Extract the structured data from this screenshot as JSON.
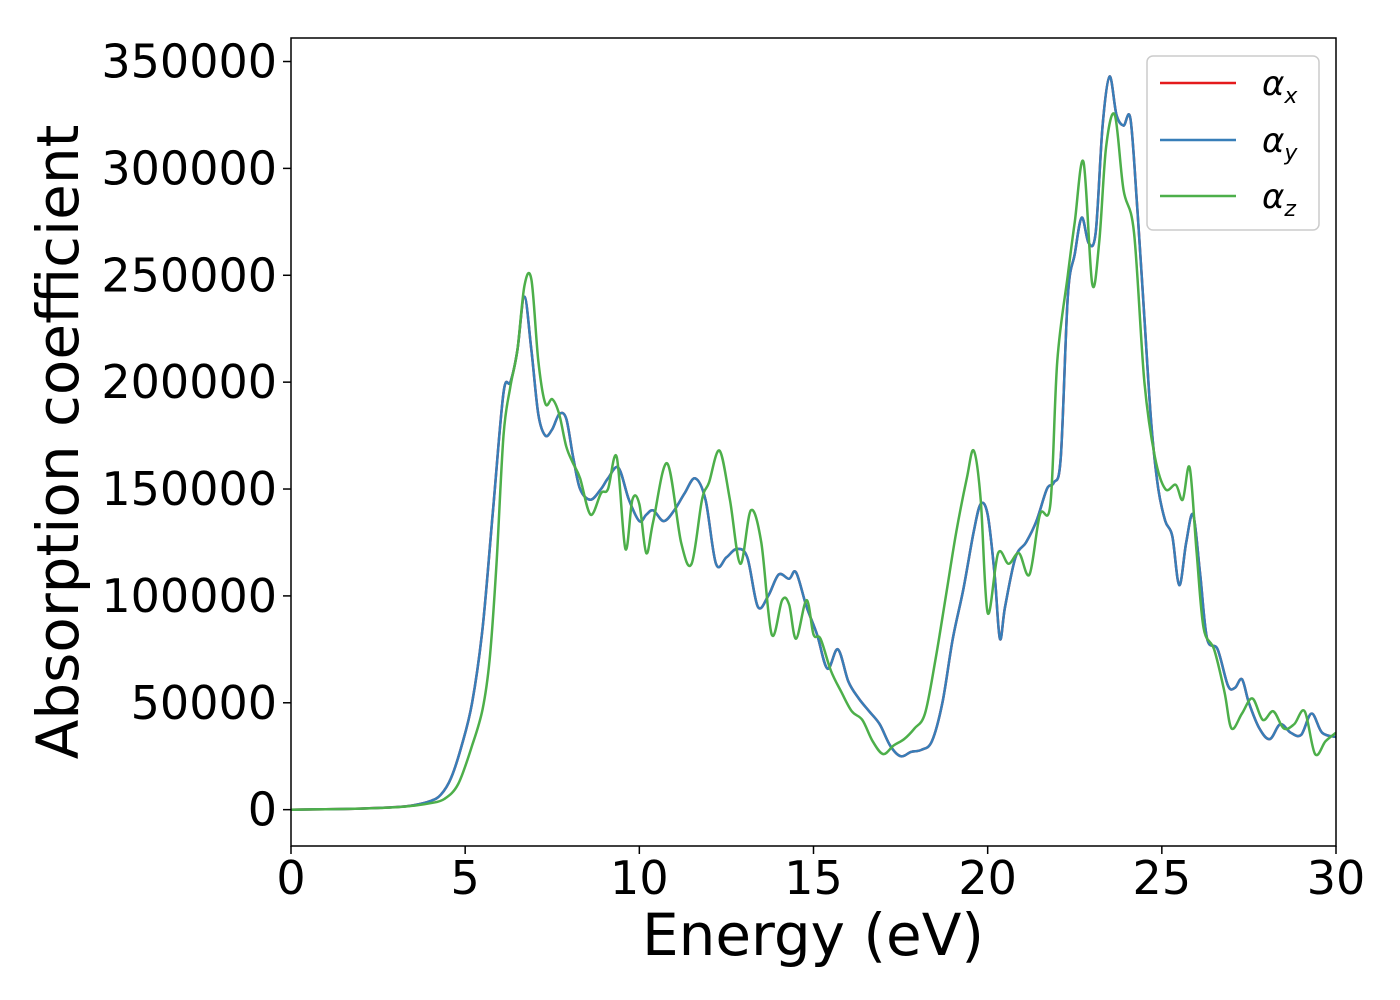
{
  "chart_data": {
    "type": "line",
    "title": "",
    "xlabel": "Energy (eV)",
    "ylabel": "Absorption coefficient",
    "xlim": [
      0,
      30
    ],
    "ylim": [
      -17000,
      361000
    ],
    "xticks": [
      0,
      5,
      10,
      15,
      20,
      25,
      30
    ],
    "yticks": [
      0,
      50000,
      100000,
      150000,
      200000,
      250000,
      300000,
      350000
    ],
    "grid": false,
    "legend_position": "top-right",
    "series": [
      {
        "name": "α_x",
        "legend_symbol": "α",
        "legend_subscript": "x",
        "color": "#e41a1c",
        "x": [
          0,
          1,
          2,
          3,
          3.5,
          4,
          4.3,
          4.6,
          4.9,
          5.2,
          5.5,
          5.8,
          6.1,
          6.3,
          6.5,
          6.7,
          6.9,
          7.1,
          7.3,
          7.5,
          7.7,
          7.9,
          8.1,
          8.3,
          8.6,
          8.9,
          9.1,
          9.4,
          9.7,
          10.0,
          10.2,
          10.4,
          10.7,
          11.0,
          11.3,
          11.6,
          11.9,
          12.2,
          12.5,
          12.8,
          13.1,
          13.4,
          13.7,
          14.0,
          14.3,
          14.5,
          14.8,
          15.1,
          15.4,
          15.7,
          16.0,
          16.3,
          16.6,
          16.9,
          17.2,
          17.5,
          17.8,
          18.1,
          18.4,
          18.7,
          19.0,
          19.3,
          19.6,
          19.8,
          20.0,
          20.2,
          20.35,
          20.5,
          20.8,
          21.1,
          21.4,
          21.7,
          21.9,
          22.1,
          22.3,
          22.5,
          22.7,
          22.9,
          23.1,
          23.3,
          23.5,
          23.7,
          23.9,
          24.1,
          24.3,
          24.5,
          24.7,
          24.9,
          25.1,
          25.3,
          25.5,
          25.7,
          25.9,
          26.1,
          26.3,
          26.6,
          26.9,
          27.1,
          27.3,
          27.5,
          27.8,
          28.1,
          28.4,
          28.7,
          29.0,
          29.3,
          29.6,
          30.0
        ],
        "values": [
          0,
          200,
          500,
          1200,
          2000,
          4000,
          7000,
          15000,
          30000,
          50000,
          85000,
          140000,
          195000,
          200000,
          215000,
          240000,
          215000,
          185000,
          175000,
          178000,
          185000,
          183000,
          165000,
          150000,
          145000,
          150000,
          155000,
          160000,
          145000,
          135000,
          138000,
          140000,
          135000,
          140000,
          148000,
          155000,
          145000,
          115000,
          118000,
          122000,
          118000,
          95000,
          100000,
          110000,
          108000,
          111000,
          95000,
          82000,
          66000,
          75000,
          60000,
          52000,
          46000,
          40000,
          30000,
          25000,
          27000,
          28000,
          32000,
          50000,
          80000,
          103000,
          130000,
          143000,
          138000,
          110000,
          80000,
          95000,
          118000,
          125000,
          135000,
          150000,
          153000,
          165000,
          240000,
          260000,
          277000,
          265000,
          270000,
          320000,
          343000,
          325000,
          320000,
          323000,
          280000,
          230000,
          180000,
          150000,
          135000,
          128000,
          105000,
          125000,
          138000,
          110000,
          80000,
          75000,
          58000,
          57000,
          61000,
          50000,
          38000,
          33000,
          40000,
          36000,
          35000,
          45000,
          36000,
          34000
        ]
      },
      {
        "name": "α_y",
        "legend_symbol": "α",
        "legend_subscript": "y",
        "color": "#377eb8",
        "x": [
          0,
          1,
          2,
          3,
          3.5,
          4,
          4.3,
          4.6,
          4.9,
          5.2,
          5.5,
          5.8,
          6.1,
          6.3,
          6.5,
          6.7,
          6.9,
          7.1,
          7.3,
          7.5,
          7.7,
          7.9,
          8.1,
          8.3,
          8.6,
          8.9,
          9.1,
          9.4,
          9.7,
          10.0,
          10.2,
          10.4,
          10.7,
          11.0,
          11.3,
          11.6,
          11.9,
          12.2,
          12.5,
          12.8,
          13.1,
          13.4,
          13.7,
          14.0,
          14.3,
          14.5,
          14.8,
          15.1,
          15.4,
          15.7,
          16.0,
          16.3,
          16.6,
          16.9,
          17.2,
          17.5,
          17.8,
          18.1,
          18.4,
          18.7,
          19.0,
          19.3,
          19.6,
          19.8,
          20.0,
          20.2,
          20.35,
          20.5,
          20.8,
          21.1,
          21.4,
          21.7,
          21.9,
          22.1,
          22.3,
          22.5,
          22.7,
          22.9,
          23.1,
          23.3,
          23.5,
          23.7,
          23.9,
          24.1,
          24.3,
          24.5,
          24.7,
          24.9,
          25.1,
          25.3,
          25.5,
          25.7,
          25.9,
          26.1,
          26.3,
          26.6,
          26.9,
          27.1,
          27.3,
          27.5,
          27.8,
          28.1,
          28.4,
          28.7,
          29.0,
          29.3,
          29.6,
          30.0
        ],
        "values": [
          0,
          200,
          500,
          1200,
          2000,
          4000,
          7000,
          15000,
          30000,
          50000,
          85000,
          140000,
          195000,
          200000,
          215000,
          240000,
          215000,
          185000,
          175000,
          178000,
          185000,
          183000,
          165000,
          150000,
          145000,
          150000,
          155000,
          160000,
          145000,
          135000,
          138000,
          140000,
          135000,
          140000,
          148000,
          155000,
          145000,
          115000,
          118000,
          122000,
          118000,
          95000,
          100000,
          110000,
          108000,
          111000,
          95000,
          82000,
          66000,
          75000,
          60000,
          52000,
          46000,
          40000,
          30000,
          25000,
          27000,
          28000,
          32000,
          50000,
          80000,
          103000,
          130000,
          143000,
          138000,
          110000,
          80000,
          95000,
          118000,
          125000,
          135000,
          150000,
          153000,
          165000,
          240000,
          260000,
          277000,
          265000,
          270000,
          320000,
          343000,
          325000,
          320000,
          323000,
          280000,
          230000,
          180000,
          150000,
          135000,
          128000,
          105000,
          125000,
          138000,
          110000,
          80000,
          75000,
          58000,
          57000,
          61000,
          50000,
          38000,
          33000,
          40000,
          36000,
          35000,
          45000,
          36000,
          34000
        ]
      },
      {
        "name": "α_z",
        "legend_symbol": "α",
        "legend_subscript": "z",
        "color": "#4daf4a",
        "x": [
          0,
          1,
          2,
          3,
          3.5,
          4,
          4.4,
          4.8,
          5.2,
          5.5,
          5.7,
          5.9,
          6.1,
          6.3,
          6.5,
          6.7,
          6.9,
          7.1,
          7.3,
          7.5,
          7.7,
          7.9,
          8.1,
          8.3,
          8.6,
          8.9,
          9.1,
          9.35,
          9.6,
          9.8,
          10.0,
          10.2,
          10.4,
          10.8,
          11.2,
          11.5,
          11.8,
          12.0,
          12.3,
          12.6,
          12.9,
          13.2,
          13.5,
          13.8,
          14.1,
          14.3,
          14.5,
          14.8,
          15.0,
          15.2,
          15.5,
          15.8,
          16.1,
          16.4,
          16.7,
          17.0,
          17.3,
          17.6,
          17.9,
          18.2,
          18.5,
          18.8,
          19.1,
          19.4,
          19.6,
          19.8,
          20.0,
          20.3,
          20.6,
          20.9,
          21.2,
          21.5,
          21.8,
          22.0,
          22.3,
          22.5,
          22.75,
          23.0,
          23.2,
          23.4,
          23.65,
          23.9,
          24.2,
          24.5,
          24.8,
          25.1,
          25.4,
          25.6,
          25.8,
          26.0,
          26.2,
          26.5,
          26.8,
          27.0,
          27.3,
          27.6,
          27.9,
          28.2,
          28.5,
          28.8,
          29.1,
          29.4,
          29.7,
          30.0
        ],
        "values": [
          0,
          200,
          500,
          1100,
          1800,
          3000,
          5000,
          12000,
          30000,
          47000,
          70000,
          115000,
          175000,
          198000,
          215000,
          245000,
          248000,
          210000,
          190000,
          192000,
          185000,
          170000,
          162000,
          155000,
          138000,
          148000,
          150000,
          165000,
          122000,
          145000,
          143000,
          120000,
          135000,
          162000,
          125000,
          115000,
          145000,
          153000,
          168000,
          145000,
          115000,
          140000,
          125000,
          82000,
          98000,
          96000,
          80000,
          98000,
          82000,
          80000,
          65000,
          55000,
          46000,
          42000,
          32000,
          26000,
          30000,
          33000,
          38000,
          45000,
          70000,
          100000,
          130000,
          155000,
          168000,
          145000,
          92000,
          120000,
          115000,
          120000,
          110000,
          138000,
          143000,
          210000,
          250000,
          275000,
          303000,
          246000,
          265000,
          310000,
          325000,
          290000,
          270000,
          200000,
          165000,
          150000,
          152000,
          145000,
          160000,
          120000,
          85000,
          75000,
          55000,
          38000,
          45000,
          52000,
          42000,
          46000,
          38000,
          40000,
          46000,
          26000,
          32000,
          36000
        ]
      }
    ]
  }
}
